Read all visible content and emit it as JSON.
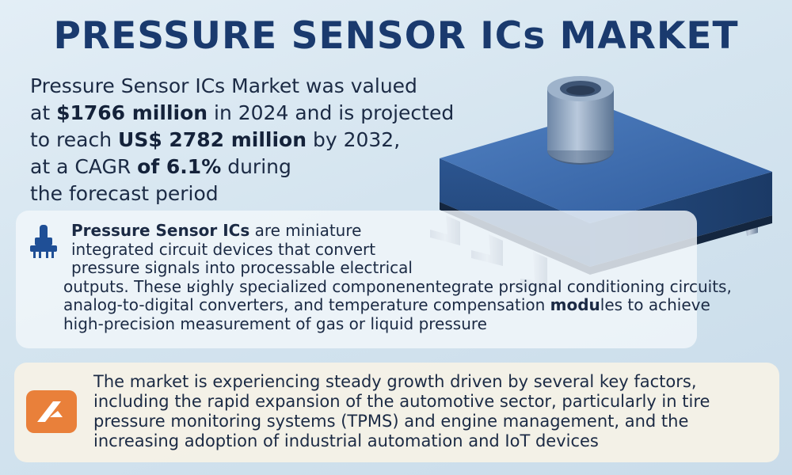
{
  "title": "PRESSURE SENSOR ICs MARKET",
  "intro": {
    "t1": "Pressure Sensor ICs Market",
    "t2": " was valued",
    "t3": "at ",
    "t4": "$1766 million",
    "t5": " in 2024 and is projected",
    "t6": "to reach ",
    "t7": "US$ 2782 million",
    "t8": " by 2032,",
    "t9": "at a CAGR ",
    "t10": "of 6.1%",
    "t11": " during",
    "t12": "the forecast period"
  },
  "definition": {
    "term": "Pressure Sensor ICs",
    "l1": " are miniature",
    "l2": "integrated circuit devices that convert",
    "l3": "pressure signals into processable electrical",
    "l4": "outputs. These ʁighly specialized componenentegrate prsignal conditioning circuits,",
    "l5a": "analog-to-digital converters, and temperature compensation ",
    "l5b": "modu",
    "l5c": "les to achieve",
    "l6": "high-precision measurement of gas or liquid pressure"
  },
  "growth": {
    "l1": "The market is experiencing steady growth driven by several key factors,",
    "l2": "including the rapid expansion of the automotive sector, particularly in tire",
    "l3": "pressure monitoring systems (TPMS) and engine management, and the",
    "l4": "increasing adoption of industrial automation and IoT devices"
  },
  "colors": {
    "title": "#1a3a6e",
    "chip_body": "#3a66a8",
    "icon_orange": "#e9803a"
  },
  "icons": [
    "pressure-gauge-icon",
    "growth-arrow-icon"
  ]
}
